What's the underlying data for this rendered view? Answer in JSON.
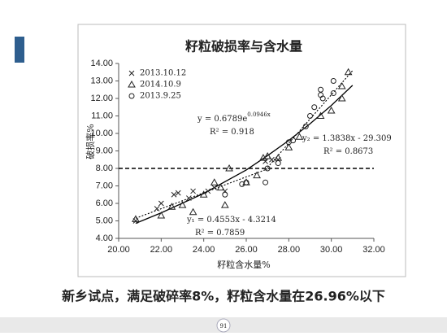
{
  "chart_data": {
    "type": "scatter",
    "title": "籽粒破损率与含水量",
    "xlabel": "籽粒含水量%",
    "ylabel": "破损率%",
    "xlim": [
      20,
      32
    ],
    "xticks": [
      {
        "value": 20,
        "label": "20.00"
      },
      {
        "value": 22,
        "label": "22.00"
      },
      {
        "value": 24,
        "label": "24.00"
      },
      {
        "value": 26,
        "label": "26.00"
      },
      {
        "value": 28,
        "label": "28.00"
      },
      {
        "value": 30,
        "label": "30.00"
      },
      {
        "value": 32,
        "label": "32.00"
      }
    ],
    "ylim": [
      4,
      14
    ],
    "yticks": [
      {
        "value": 4,
        "label": "4.00"
      },
      {
        "value": 5,
        "label": "5.00"
      },
      {
        "value": 6,
        "label": "6.00"
      },
      {
        "value": 7,
        "label": "7.00"
      },
      {
        "value": 8,
        "label": "8.00"
      },
      {
        "value": 9,
        "label": "9.00"
      },
      {
        "value": 10,
        "label": "10.00"
      },
      {
        "value": 11,
        "label": "11.00"
      },
      {
        "value": 12,
        "label": "12.00"
      },
      {
        "value": 13,
        "label": "13.00"
      },
      {
        "value": 14,
        "label": "14.00"
      }
    ],
    "legend": "upper-left",
    "series": [
      {
        "name": "2013.10.12",
        "marker": "x",
        "color": "#222222",
        "x": [
          20.8,
          21.8,
          22.0,
          22.6,
          22.8,
          23.3,
          23.5,
          24.2,
          24.5,
          25.0,
          26.9,
          27.2,
          27.5
        ],
        "values": [
          5.0,
          5.7,
          6.0,
          6.5,
          6.6,
          6.3,
          6.7,
          6.7,
          6.9,
          6.7,
          8.4,
          8.5,
          8.5
        ]
      },
      {
        "name": "2014.10.9",
        "marker": "triangle",
        "color": "#222222",
        "x": [
          20.8,
          22.0,
          22.5,
          23.0,
          23.5,
          24.0,
          24.5,
          24.8,
          25.0,
          25.2,
          26.0,
          26.5,
          26.8,
          27.0,
          27.5,
          28.0,
          28.5,
          29.5,
          30.0,
          30.5,
          30.5,
          30.8
        ],
        "values": [
          5.1,
          5.3,
          5.8,
          5.9,
          5.5,
          6.5,
          7.2,
          6.9,
          5.9,
          8.0,
          7.2,
          7.6,
          8.6,
          8.7,
          8.6,
          9.2,
          9.8,
          11.0,
          11.3,
          12.0,
          12.7,
          13.5
        ]
      },
      {
        "name": "2013.9.25",
        "marker": "circle",
        "color": "#222222",
        "x": [
          25.0,
          25.8,
          26.0,
          26.9,
          27.0,
          27.5,
          28.0,
          28.2,
          28.8,
          29.0,
          29.2,
          29.5,
          29.5,
          29.6,
          30.1,
          30.1
        ],
        "values": [
          6.5,
          7.1,
          7.2,
          7.2,
          8.0,
          8.3,
          9.5,
          9.6,
          10.4,
          11.0,
          11.5,
          12.2,
          12.5,
          12.0,
          12.3,
          13.0
        ]
      }
    ],
    "fit_lines": [
      {
        "style": "solid",
        "x": [
          20.8,
          22,
          24,
          26,
          27,
          28,
          29,
          30,
          31
        ],
        "values": [
          4.86,
          5.46,
          6.57,
          7.91,
          8.73,
          9.6,
          10.55,
          11.6,
          12.75
        ]
      },
      {
        "style": "dotted",
        "x": [
          20.8,
          27
        ],
        "values": [
          5.15,
          7.97
        ]
      },
      {
        "style": "dotted",
        "x": [
          26.9,
          31
        ],
        "values": [
          7.92,
          13.59
        ]
      }
    ],
    "reference_line": 8,
    "annotations": [
      {
        "text": "y = 0.6789e",
        "sup": "0.0946x"
      },
      {
        "text": "R² = 0.918"
      },
      {
        "text": "y₂ = 1.3838x - 29.309"
      },
      {
        "text": "R² = 0.8673"
      },
      {
        "text": "y₁ = 0.4553x - 4.3214"
      },
      {
        "text": "R² = 0.7859"
      }
    ]
  },
  "slide": {
    "caption": "新乡试点，满足破碎率8%，籽粒含水量在26.96%以下",
    "page_number": "91"
  }
}
